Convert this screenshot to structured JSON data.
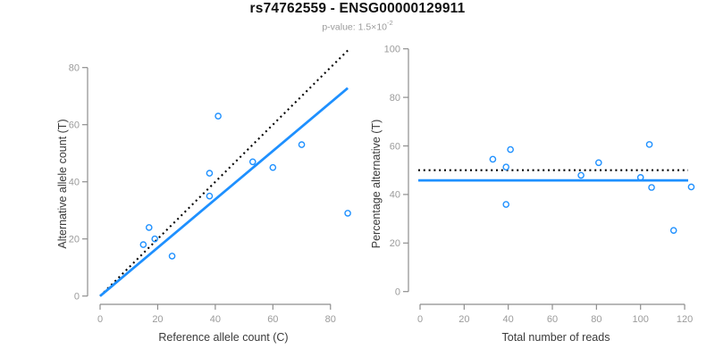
{
  "header": {
    "title": "rs74762559 - ENSG00000129911",
    "pvalue_prefix": "p-value: 1.5×10",
    "pvalue_exponent": "-2"
  },
  "colors": {
    "accent_blue": "#1E90FF",
    "line_black": "#000000",
    "axis_gray": "#8e8e8e",
    "tick_label_gray": "#9b9b9b",
    "axis_title_dark": "#3a3a3a",
    "subtitle_gray": "#9b9b9b"
  },
  "chart_data": [
    {
      "type": "scatter",
      "xlabel": "Reference allele count (C)",
      "ylabel": "Alternative allele count (T)",
      "xlim": [
        0,
        86
      ],
      "ylim": [
        0,
        80
      ],
      "xticks": [
        0,
        20,
        40,
        60,
        80
      ],
      "yticks": [
        0,
        20,
        40,
        60,
        80
      ],
      "grid": false,
      "legend": "none",
      "points": [
        [
          15,
          18
        ],
        [
          17,
          24
        ],
        [
          19,
          20
        ],
        [
          25,
          14
        ],
        [
          38,
          35
        ],
        [
          38,
          43
        ],
        [
          41,
          63
        ],
        [
          53,
          47
        ],
        [
          60,
          45
        ],
        [
          70,
          53
        ],
        [
          86,
          29
        ]
      ],
      "lines": [
        {
          "name": "identity-line",
          "style": "dotted",
          "color": "#000000",
          "x1": 0,
          "y1": 0,
          "x2": 86.5,
          "y2": 86.5
        },
        {
          "name": "fit-line",
          "style": "solid",
          "color": "#1E90FF",
          "x1": 0,
          "y1": 0,
          "x2": 86,
          "y2": 72.8
        }
      ]
    },
    {
      "type": "scatter",
      "xlabel": "Total number of reads",
      "ylabel": "Percentage alternative (T)",
      "xlim": [
        0,
        123
      ],
      "ylim": [
        0,
        100
      ],
      "xticks": [
        0,
        20,
        40,
        60,
        80,
        100,
        120
      ],
      "yticks": [
        0,
        20,
        40,
        60,
        80,
        100
      ],
      "grid": false,
      "legend": "none",
      "points": [
        [
          33,
          54.5
        ],
        [
          39,
          51.3
        ],
        [
          39,
          35.9
        ],
        [
          41,
          58.5
        ],
        [
          73,
          47.9
        ],
        [
          81,
          53.1
        ],
        [
          100,
          47.0
        ],
        [
          104,
          60.6
        ],
        [
          105,
          42.9
        ],
        [
          115,
          25.2
        ],
        [
          123,
          43.1
        ]
      ],
      "lines": [
        {
          "name": "null-50pct-line",
          "style": "dotted",
          "color": "#000000",
          "y": 50
        },
        {
          "name": "mean-ratio-line",
          "style": "solid",
          "color": "#1E90FF",
          "y": 45.8
        }
      ]
    }
  ]
}
